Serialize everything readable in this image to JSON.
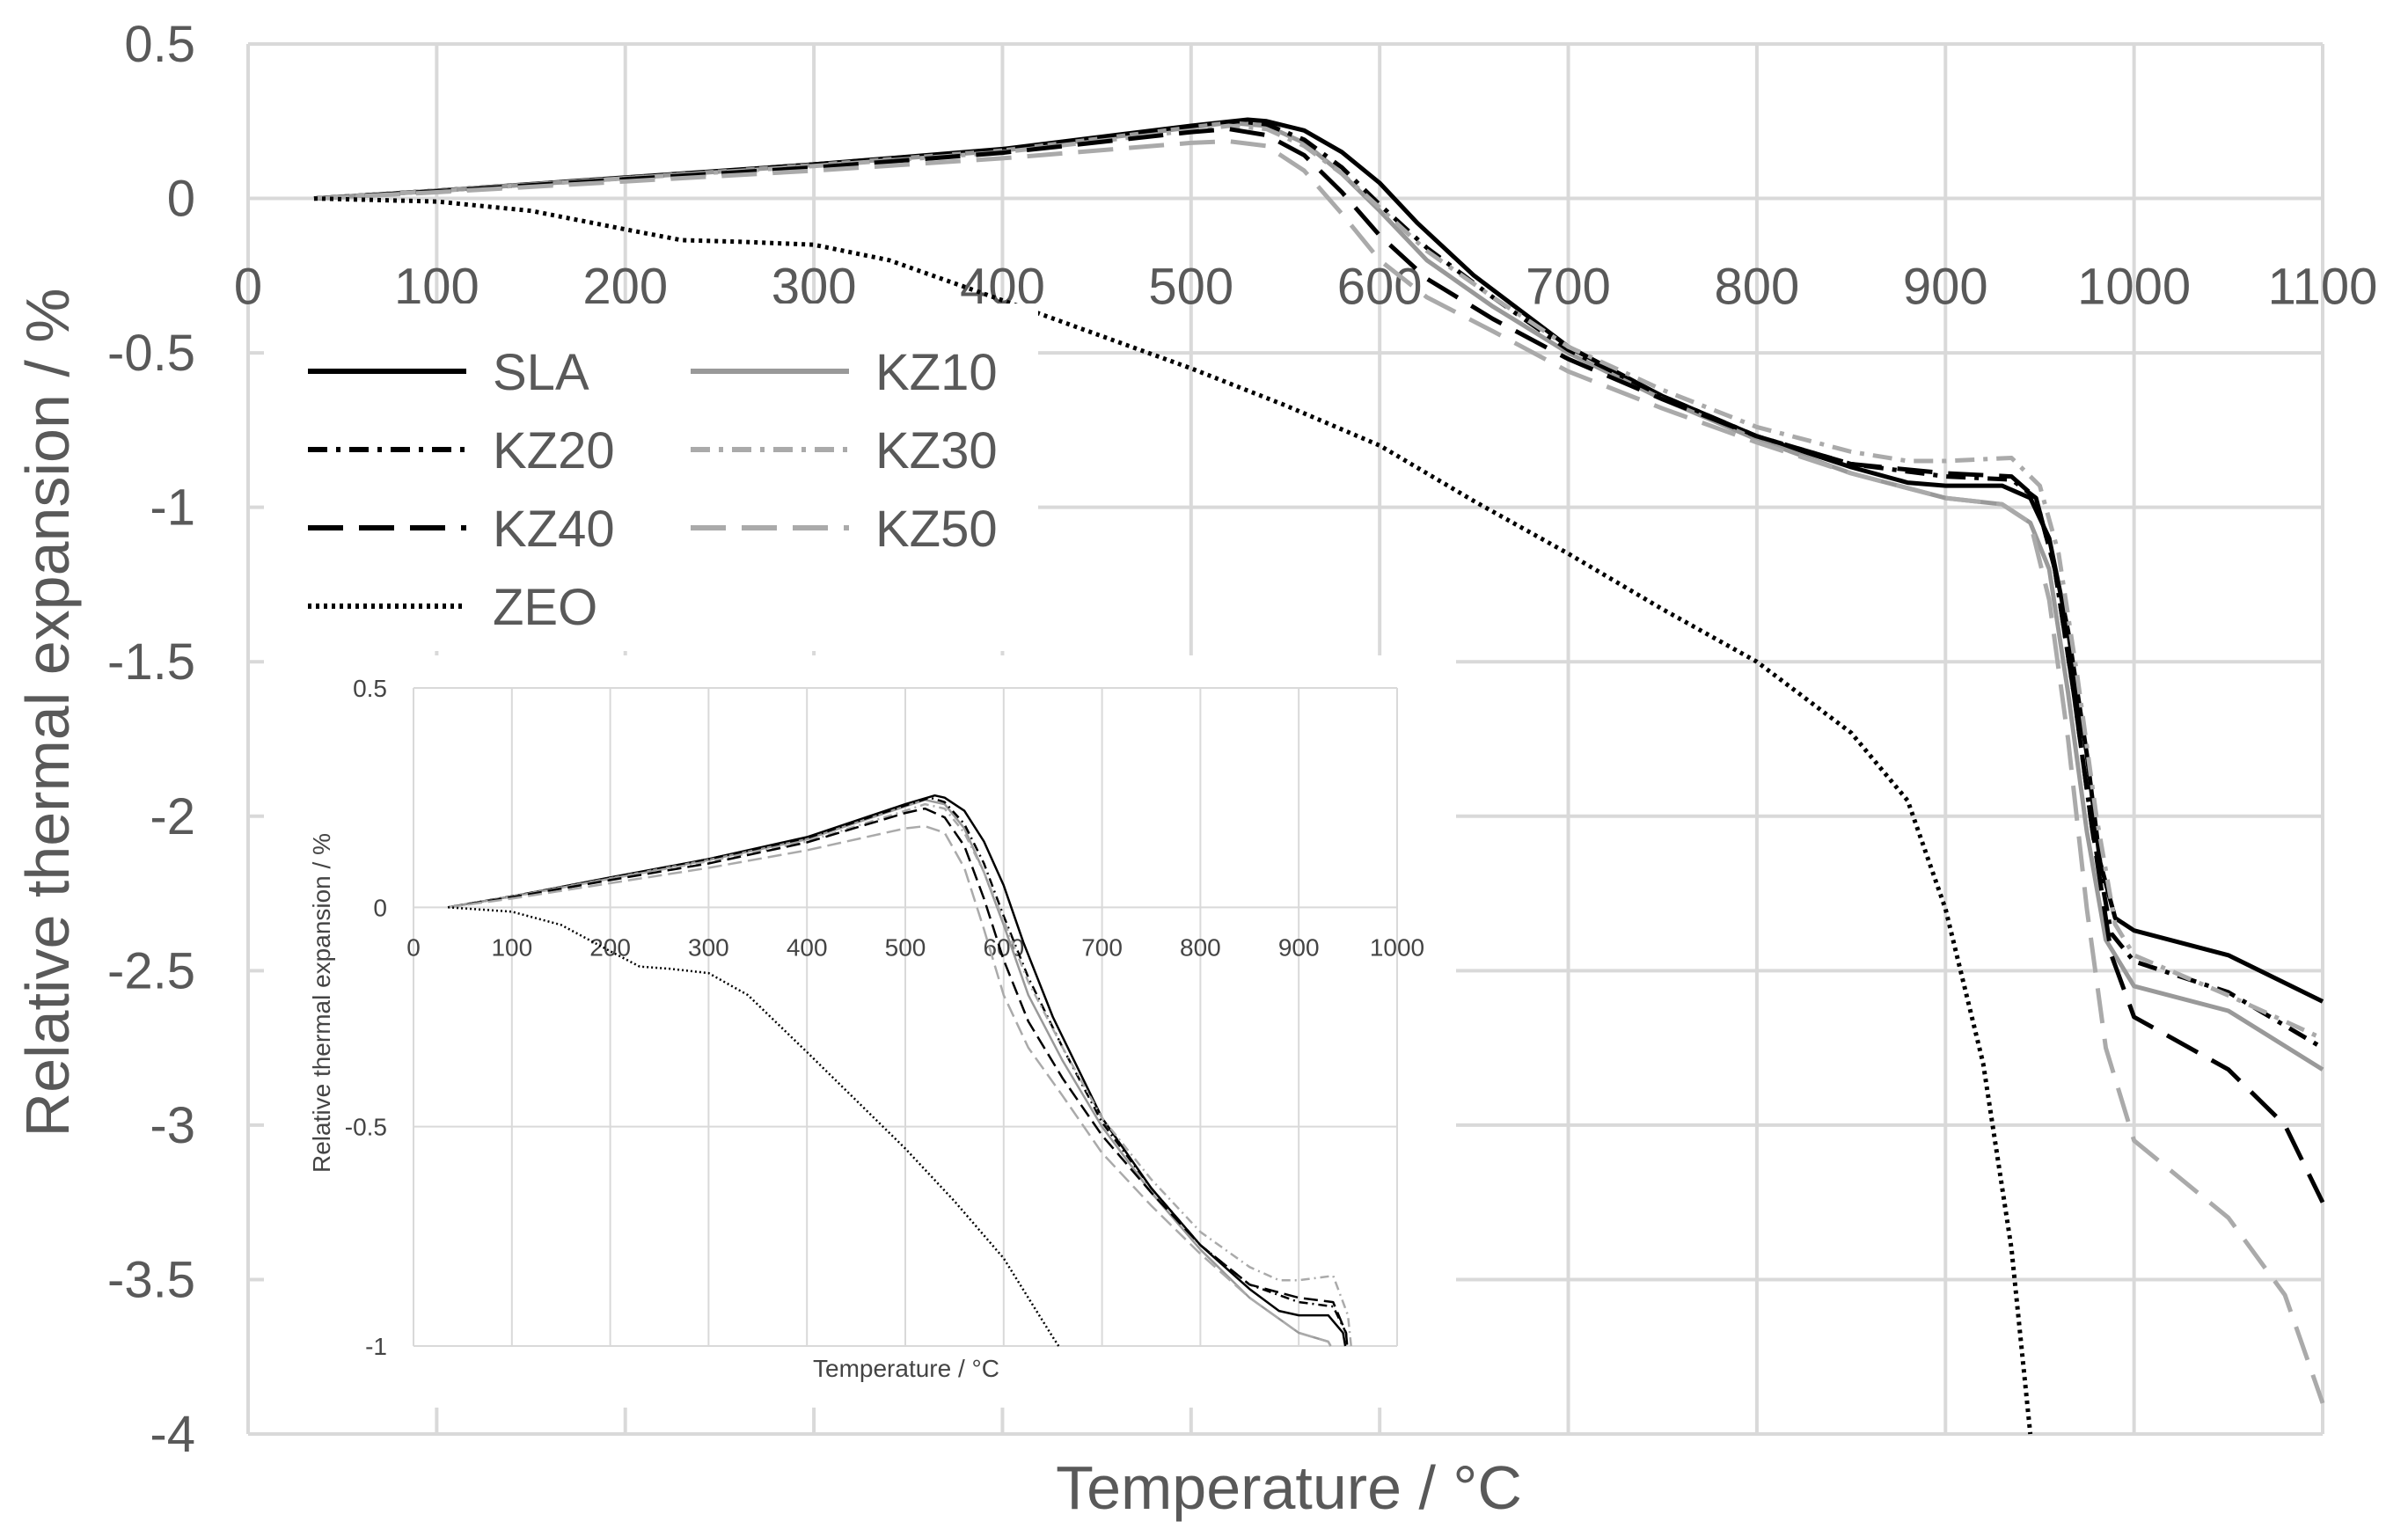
{
  "chart_data": [
    {
      "type": "line",
      "title": "",
      "xlabel": "Temperature / °C",
      "ylabel": "Relative thermal expansion / %",
      "xlim": [
        0,
        1100
      ],
      "ylim": [
        -4,
        0.5
      ],
      "x_ticks": [
        0,
        100,
        200,
        300,
        400,
        500,
        600,
        700,
        800,
        900,
        1000,
        1100
      ],
      "y_ticks": [
        0.5,
        0,
        -0.5,
        -1,
        -1.5,
        -2,
        -2.5,
        -3,
        -3.5,
        -4
      ],
      "x_tick_labels": [
        "0",
        "100",
        "200",
        "300",
        "400",
        "500",
        "600",
        "700",
        "800",
        "900",
        "1000",
        "1100"
      ],
      "y_tick_labels": [
        "0.5",
        "0",
        "-0.5",
        "-1",
        "-1.5",
        "-2",
        "-2.5",
        "-3",
        "-3.5",
        "-4"
      ],
      "grid": true,
      "legend_position": "top-left",
      "legend": [
        "SLA",
        "KZ10",
        "KZ20",
        "KZ30",
        "KZ40",
        "KZ50",
        "ZEO"
      ],
      "series": [
        {
          "name": "SLA",
          "color": "#000000",
          "dash": "solid",
          "points": [
            [
              35,
              0
            ],
            [
              100,
              0.025
            ],
            [
              200,
              0.068
            ],
            [
              300,
              0.11
            ],
            [
              400,
              0.16
            ],
            [
              500,
              0.235
            ],
            [
              530,
              0.255
            ],
            [
              540,
              0.25
            ],
            [
              560,
              0.22
            ],
            [
              580,
              0.15
            ],
            [
              600,
              0.05
            ],
            [
              620,
              -0.08
            ],
            [
              650,
              -0.25
            ],
            [
              700,
              -0.48
            ],
            [
              750,
              -0.64
            ],
            [
              800,
              -0.77
            ],
            [
              850,
              -0.87
            ],
            [
              880,
              -0.92
            ],
            [
              900,
              -0.93
            ],
            [
              930,
              -0.93
            ],
            [
              945,
              -0.97
            ],
            [
              955,
              -1.1
            ],
            [
              965,
              -1.4
            ],
            [
              975,
              -1.8
            ],
            [
              982,
              -2.15
            ],
            [
              990,
              -2.33
            ],
            [
              1000,
              -2.37
            ],
            [
              1050,
              -2.45
            ],
            [
              1100,
              -2.6
            ]
          ]
        },
        {
          "name": "KZ10",
          "color": "#999999",
          "dash": "solid",
          "points": [
            [
              35,
              0
            ],
            [
              100,
              0.025
            ],
            [
              200,
              0.066
            ],
            [
              300,
              0.108
            ],
            [
              400,
              0.155
            ],
            [
              500,
              0.23
            ],
            [
              520,
              0.245
            ],
            [
              540,
              0.235
            ],
            [
              560,
              0.18
            ],
            [
              580,
              0.08
            ],
            [
              600,
              -0.04
            ],
            [
              625,
              -0.2
            ],
            [
              660,
              -0.35
            ],
            [
              700,
              -0.5
            ],
            [
              750,
              -0.65
            ],
            [
              800,
              -0.78
            ],
            [
              850,
              -0.89
            ],
            [
              900,
              -0.97
            ],
            [
              930,
              -0.99
            ],
            [
              945,
              -1.05
            ],
            [
              955,
              -1.2
            ],
            [
              965,
              -1.6
            ],
            [
              975,
              -2.05
            ],
            [
              985,
              -2.4
            ],
            [
              1000,
              -2.55
            ],
            [
              1050,
              -2.63
            ],
            [
              1100,
              -2.82
            ]
          ]
        },
        {
          "name": "KZ20",
          "color": "#000000",
          "dash": "dashdot",
          "points": [
            [
              35,
              0
            ],
            [
              100,
              0.025
            ],
            [
              200,
              0.066
            ],
            [
              300,
              0.11
            ],
            [
              400,
              0.158
            ],
            [
              500,
              0.232
            ],
            [
              525,
              0.25
            ],
            [
              540,
              0.24
            ],
            [
              560,
              0.19
            ],
            [
              580,
              0.1
            ],
            [
              600,
              -0.02
            ],
            [
              625,
              -0.16
            ],
            [
              660,
              -0.32
            ],
            [
              700,
              -0.49
            ],
            [
              750,
              -0.64
            ],
            [
              800,
              -0.77
            ],
            [
              850,
              -0.86
            ],
            [
              900,
              -0.9
            ],
            [
              935,
              -0.91
            ],
            [
              948,
              -0.97
            ],
            [
              958,
              -1.2
            ],
            [
              968,
              -1.6
            ],
            [
              978,
              -2.05
            ],
            [
              988,
              -2.38
            ],
            [
              1000,
              -2.47
            ],
            [
              1050,
              -2.57
            ],
            [
              1100,
              -2.75
            ]
          ]
        },
        {
          "name": "KZ30",
          "color": "#aaaaaa",
          "dash": "dashdot",
          "points": [
            [
              35,
              0
            ],
            [
              100,
              0.024
            ],
            [
              200,
              0.065
            ],
            [
              300,
              0.105
            ],
            [
              400,
              0.15
            ],
            [
              500,
              0.22
            ],
            [
              520,
              0.235
            ],
            [
              540,
              0.225
            ],
            [
              560,
              0.17
            ],
            [
              580,
              0.08
            ],
            [
              600,
              -0.03
            ],
            [
              625,
              -0.17
            ],
            [
              660,
              -0.32
            ],
            [
              700,
              -0.48
            ],
            [
              750,
              -0.62
            ],
            [
              800,
              -0.74
            ],
            [
              850,
              -0.82
            ],
            [
              880,
              -0.85
            ],
            [
              900,
              -0.85
            ],
            [
              935,
              -0.84
            ],
            [
              950,
              -0.93
            ],
            [
              960,
              -1.15
            ],
            [
              970,
              -1.55
            ],
            [
              980,
              -2.0
            ],
            [
              990,
              -2.35
            ],
            [
              1000,
              -2.45
            ],
            [
              1050,
              -2.58
            ],
            [
              1100,
              -2.72
            ]
          ]
        },
        {
          "name": "KZ40",
          "color": "#000000",
          "dash": "longdash",
          "points": [
            [
              35,
              0
            ],
            [
              100,
              0.023
            ],
            [
              200,
              0.062
            ],
            [
              300,
              0.1
            ],
            [
              400,
              0.148
            ],
            [
              500,
              0.215
            ],
            [
              520,
              0.225
            ],
            [
              540,
              0.205
            ],
            [
              560,
              0.14
            ],
            [
              580,
              0.02
            ],
            [
              600,
              -0.12
            ],
            [
              625,
              -0.26
            ],
            [
              660,
              -0.39
            ],
            [
              700,
              -0.52
            ],
            [
              750,
              -0.65
            ],
            [
              800,
              -0.77
            ],
            [
              850,
              -0.86
            ],
            [
              900,
              -0.89
            ],
            [
              935,
              -0.9
            ],
            [
              948,
              -0.97
            ],
            [
              958,
              -1.2
            ],
            [
              968,
              -1.6
            ],
            [
              978,
              -2.05
            ],
            [
              988,
              -2.45
            ],
            [
              1000,
              -2.65
            ],
            [
              1050,
              -2.82
            ],
            [
              1080,
              -3.0
            ],
            [
              1100,
              -3.25
            ]
          ]
        },
        {
          "name": "KZ50",
          "color": "#aaaaaa",
          "dash": "longdash",
          "points": [
            [
              35,
              0
            ],
            [
              100,
              0.02
            ],
            [
              200,
              0.055
            ],
            [
              300,
              0.09
            ],
            [
              400,
              0.13
            ],
            [
              500,
              0.18
            ],
            [
              520,
              0.185
            ],
            [
              540,
              0.17
            ],
            [
              560,
              0.09
            ],
            [
              580,
              -0.05
            ],
            [
              600,
              -0.2
            ],
            [
              625,
              -0.32
            ],
            [
              660,
              -0.43
            ],
            [
              700,
              -0.56
            ],
            [
              750,
              -0.68
            ],
            [
              800,
              -0.79
            ],
            [
              850,
              -0.89
            ],
            [
              900,
              -0.97
            ],
            [
              930,
              -0.99
            ],
            [
              945,
              -1.05
            ],
            [
              955,
              -1.3
            ],
            [
              965,
              -1.75
            ],
            [
              975,
              -2.3
            ],
            [
              985,
              -2.75
            ],
            [
              1000,
              -3.05
            ],
            [
              1050,
              -3.3
            ],
            [
              1080,
              -3.55
            ],
            [
              1100,
              -3.9
            ]
          ]
        },
        {
          "name": "ZEO",
          "color": "#000000",
          "dash": "dotted",
          "points": [
            [
              35,
              0
            ],
            [
              100,
              -0.01
            ],
            [
              150,
              -0.04
            ],
            [
              200,
              -0.1
            ],
            [
              230,
              -0.135
            ],
            [
              260,
              -0.14
            ],
            [
              300,
              -0.15
            ],
            [
              340,
              -0.2
            ],
            [
              400,
              -0.33
            ],
            [
              450,
              -0.44
            ],
            [
              500,
              -0.55
            ],
            [
              550,
              -0.67
            ],
            [
              600,
              -0.8
            ],
            [
              650,
              -0.98
            ],
            [
              700,
              -1.15
            ],
            [
              750,
              -1.33
            ],
            [
              800,
              -1.5
            ],
            [
              850,
              -1.73
            ],
            [
              880,
              -1.95
            ],
            [
              900,
              -2.3
            ],
            [
              920,
              -2.8
            ],
            [
              935,
              -3.4
            ],
            [
              945,
              -4.0
            ]
          ]
        }
      ]
    },
    {
      "type": "line",
      "title": "",
      "xlabel": "Temperature / °C",
      "ylabel": "Relative thermal expansion / %",
      "xlim": [
        0,
        1000
      ],
      "ylim": [
        -1,
        0.5
      ],
      "x_ticks": [
        0,
        100,
        200,
        300,
        400,
        500,
        600,
        700,
        800,
        900,
        1000
      ],
      "y_ticks": [
        0.5,
        0,
        -0.5,
        -1
      ],
      "x_tick_labels": [
        "0",
        "100",
        "200",
        "300",
        "400",
        "500",
        "600",
        "700",
        "800",
        "900",
        "1000"
      ],
      "y_tick_labels": [
        "0.5",
        "0",
        "-0.5",
        "-1"
      ],
      "grid": true,
      "note": "inset"
    }
  ]
}
